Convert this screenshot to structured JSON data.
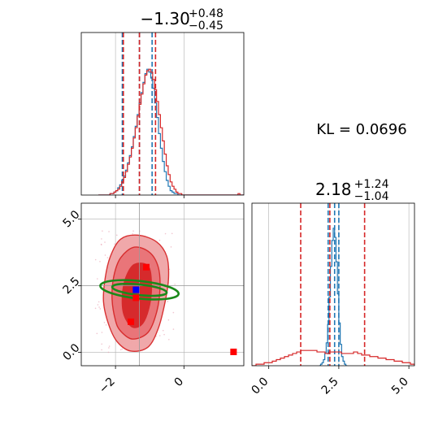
{
  "chart_data": [
    {
      "type": "histogram",
      "panel": "upper-left",
      "title": {
        "median": "−1.30",
        "plus": "+0.48",
        "minus": "−0.45"
      },
      "xlim": [
        -3.0,
        1.75
      ],
      "grid": true,
      "series": [
        {
          "color": "#1f77b4",
          "bin_edges_x": [
            -2.5,
            1.75
          ],
          "heights": [
            0.0,
            0.0,
            0.0,
            0.0,
            0.0,
            0.0,
            0.01,
            0.01,
            0.02,
            0.03,
            0.05,
            0.07,
            0.1,
            0.13,
            0.17,
            0.22,
            0.27,
            0.33,
            0.4,
            0.47,
            0.55,
            0.63,
            0.7,
            0.77,
            0.83,
            0.86,
            0.84,
            0.8,
            0.73,
            0.63,
            0.53,
            0.42,
            0.32,
            0.23,
            0.16,
            0.1,
            0.06,
            0.03,
            0.02,
            0.01,
            0.01,
            0.0,
            0.0,
            0.0,
            0.0,
            0.0,
            0.0,
            0.0,
            0.0,
            0.0,
            0.0,
            0.0,
            0.0,
            0.0,
            0.0,
            0.0,
            0.0,
            0.0,
            0.0,
            0.0,
            0.0,
            0.0,
            0.0,
            0.0,
            0.0,
            0.0,
            0.0,
            0.0,
            0.0,
            0.0,
            0.0,
            0.0,
            0.0,
            0.0,
            0.0
          ],
          "quantile_lines": [
            -1.8,
            -1.3,
            -0.93
          ]
        },
        {
          "color": "#d62728",
          "bin_edges_x": [
            -2.5,
            1.75
          ],
          "heights": [
            0.0,
            0.0,
            0.0,
            0.0,
            0.0,
            0.0,
            0.01,
            0.01,
            0.02,
            0.03,
            0.04,
            0.06,
            0.09,
            0.12,
            0.16,
            0.21,
            0.26,
            0.32,
            0.39,
            0.46,
            0.54,
            0.62,
            0.69,
            0.76,
            0.82,
            0.85,
            0.86,
            0.84,
            0.79,
            0.72,
            0.64,
            0.55,
            0.46,
            0.37,
            0.28,
            0.2,
            0.14,
            0.09,
            0.06,
            0.04,
            0.02,
            0.01,
            0.01,
            0.0,
            0.0,
            0.0,
            0.0,
            0.0,
            0.0,
            0.0,
            0.0,
            0.0,
            0.0,
            0.0,
            0.0,
            0.0,
            0.0,
            0.0,
            0.0,
            0.0,
            0.0,
            0.0,
            0.0,
            0.0,
            0.0,
            0.0,
            0.0,
            0.0,
            0.0,
            0.0,
            0.0,
            0.0,
            0.01,
            0.0,
            0.0
          ],
          "quantile_lines": [
            -1.77,
            -1.3,
            -0.83
          ]
        }
      ],
      "truth_line_x": -1.3
    },
    {
      "type": "text",
      "panel": "upper-right",
      "text": "KL = 0.0696"
    },
    {
      "type": "contour",
      "panel": "lower-left",
      "xlim": [
        -3.0,
        1.75
      ],
      "ylim": [
        -0.5,
        5.6
      ],
      "xticks": [
        -2,
        0
      ],
      "yticks": [
        0.0,
        2.5,
        5.0
      ],
      "xtick_labels": [
        "−2",
        "0"
      ],
      "ytick_labels": [
        "0.0",
        "2.5",
        "5.0"
      ],
      "truth": {
        "x": -1.3,
        "y": 2.5
      },
      "red_markers": [
        {
          "x": -1.1,
          "y": 3.2
        },
        {
          "x": -1.4,
          "y": 2.05
        },
        {
          "x": -1.55,
          "y": 1.15
        },
        {
          "x": 1.45,
          "y": 0.02
        }
      ],
      "blue_marker": {
        "x": -1.4,
        "y": 2.35
      },
      "red_contours": [
        {
          "level": "outer",
          "points": [
            [
              -2.2,
              1.05
            ],
            [
              -2.35,
              1.9
            ],
            [
              -2.3,
              2.8
            ],
            [
              -2.15,
              3.6
            ],
            [
              -1.85,
              4.25
            ],
            [
              -1.35,
              4.4
            ],
            [
              -0.8,
              4.15
            ],
            [
              -0.5,
              3.6
            ],
            [
              -0.45,
              2.8
            ],
            [
              -0.55,
              1.9
            ],
            [
              -0.75,
              0.9
            ],
            [
              -1.05,
              0.2
            ],
            [
              -1.55,
              0.05
            ],
            [
              -1.95,
              0.4
            ]
          ]
        },
        {
          "level": "middle",
          "points": [
            [
              -2.0,
              1.2
            ],
            [
              -2.1,
              2.0
            ],
            [
              -2.05,
              2.85
            ],
            [
              -1.85,
              3.55
            ],
            [
              -1.45,
              3.95
            ],
            [
              -1.0,
              3.75
            ],
            [
              -0.75,
              3.2
            ],
            [
              -0.7,
              2.4
            ],
            [
              -0.8,
              1.5
            ],
            [
              -1.05,
              0.75
            ],
            [
              -1.5,
              0.5
            ],
            [
              -1.85,
              0.8
            ]
          ]
        },
        {
          "level": "inner",
          "points": [
            [
              -1.75,
              1.4
            ],
            [
              -1.8,
              2.1
            ],
            [
              -1.7,
              2.8
            ],
            [
              -1.45,
              3.3
            ],
            [
              -1.05,
              3.25
            ],
            [
              -0.95,
              2.6
            ],
            [
              -1.0,
              1.8
            ],
            [
              -1.2,
              1.1
            ],
            [
              -1.5,
              0.95
            ]
          ]
        }
      ],
      "green_contours": [
        {
          "level": "outer",
          "center": [
            -1.3,
            2.35
          ],
          "rx": 1.15,
          "ry": 0.33,
          "angle_deg": -6
        },
        {
          "level": "inner",
          "center": [
            -1.3,
            2.35
          ],
          "rx": 0.8,
          "ry": 0.2,
          "angle_deg": -6
        }
      ]
    },
    {
      "type": "histogram",
      "panel": "lower-right",
      "title": {
        "median": "2.18",
        "plus": "+1.24",
        "minus": "−1.04"
      },
      "xlim": [
        -0.6,
        5.2
      ],
      "xticks": [
        0.0,
        2.5,
        5.0
      ],
      "xtick_labels": [
        "0.0",
        "2.5",
        "5.0"
      ],
      "grid": true,
      "series": [
        {
          "color": "#1f77b4",
          "bin_edges_x": [
            1.8,
            2.8
          ],
          "heights": [
            0.0,
            0.01,
            0.02,
            0.04,
            0.08,
            0.15,
            0.27,
            0.45,
            0.65,
            0.82,
            0.9,
            0.84,
            0.68,
            0.47,
            0.28,
            0.14,
            0.06,
            0.03,
            0.01,
            0.0
          ],
          "quantile_lines": [
            2.12,
            2.35,
            2.5
          ]
        },
        {
          "color": "#d62728",
          "bin_edges_x": [
            -0.6,
            5.2
          ],
          "heights": [
            0.0,
            0.01,
            0.01,
            0.02,
            0.02,
            0.03,
            0.04,
            0.05,
            0.06,
            0.07,
            0.08,
            0.09,
            0.1,
            0.1,
            0.1,
            0.1,
            0.09,
            0.09,
            0.08,
            0.09,
            0.09,
            0.09,
            0.08,
            0.08,
            0.08,
            0.09,
            0.08,
            0.07,
            0.07,
            0.06,
            0.06,
            0.05,
            0.05,
            0.04,
            0.04,
            0.03,
            0.03,
            0.02,
            0.02,
            0.01
          ],
          "quantile_lines": [
            1.14,
            2.18,
            3.42
          ]
        }
      ],
      "truth_line_x": 2.3
    }
  ]
}
